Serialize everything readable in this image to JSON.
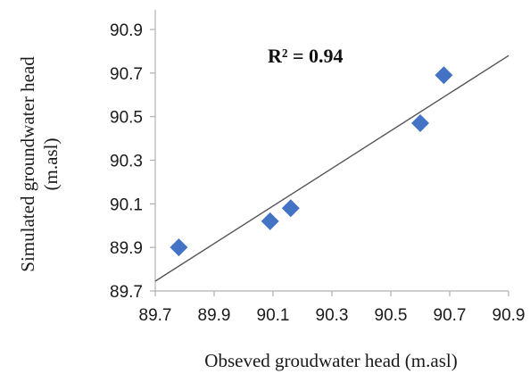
{
  "chart_data": {
    "type": "scatter",
    "xlabel": "Obseved groudwater head (m.asl)",
    "ylabel_line1": "Simulated groundwater head",
    "ylabel_line2": "(m.asl)",
    "xlim": [
      89.7,
      90.9
    ],
    "ylim": [
      89.7,
      90.9
    ],
    "xticks": [
      89.7,
      89.9,
      90.1,
      90.3,
      90.5,
      90.7,
      90.9
    ],
    "yticks": [
      89.7,
      89.9,
      90.1,
      90.3,
      90.5,
      90.7,
      90.9
    ],
    "tick_labels_x": [
      "89.7",
      "89.9",
      "90.1",
      "90.3",
      "90.5",
      "90.7",
      "90.9"
    ],
    "tick_labels_y": [
      "89.7",
      "89.9",
      "90.1",
      "90.3",
      "90.5",
      "90.7",
      "90.9"
    ],
    "points": [
      {
        "x": 89.78,
        "y": 89.9
      },
      {
        "x": 90.09,
        "y": 90.02
      },
      {
        "x": 90.16,
        "y": 90.08
      },
      {
        "x": 90.6,
        "y": 90.47
      },
      {
        "x": 90.68,
        "y": 90.69
      }
    ],
    "trendline": {
      "x": [
        89.7,
        90.9
      ],
      "y": [
        89.745,
        90.78
      ]
    },
    "annotation": "R² = 0.94",
    "grid": false,
    "marker": "diamond",
    "colors": {
      "marker": "#4472C4",
      "trendline": "#555555",
      "axis": "#b0b0b0"
    }
  }
}
